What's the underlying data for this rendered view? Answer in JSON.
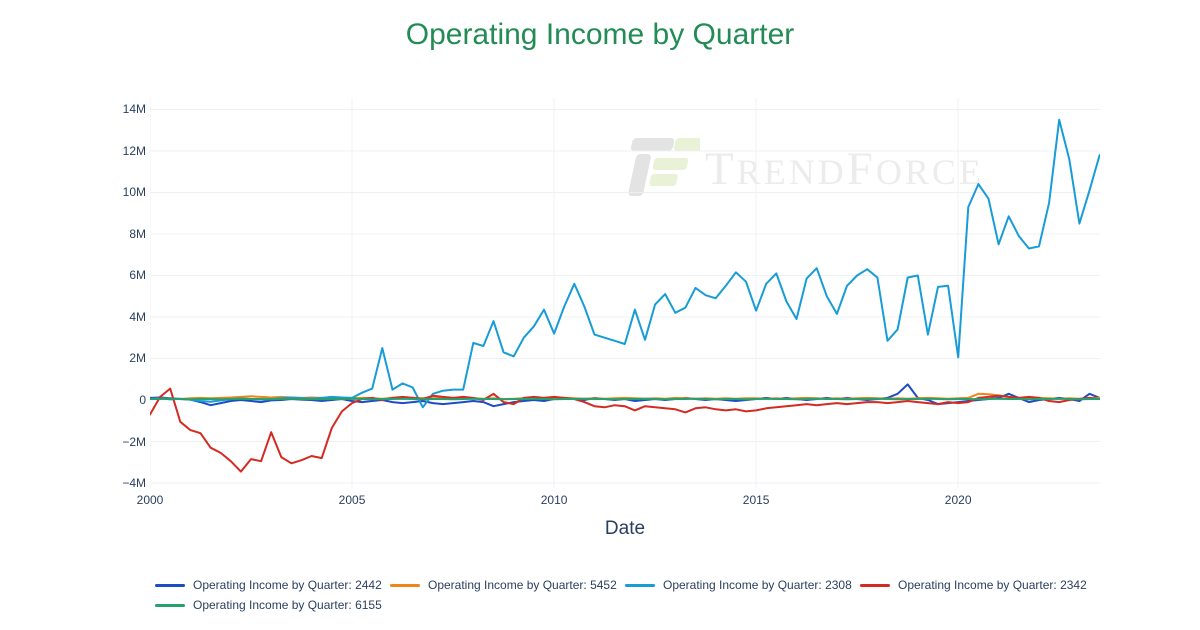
{
  "chart_data": {
    "type": "line",
    "title": "Operating Income by Quarter",
    "xlabel": "Date",
    "ylabel": "",
    "x_start": 2000,
    "x_step": 0.25,
    "xlim": [
      2000,
      2023.51
    ],
    "ylim": [
      -4.24,
      14.55
    ],
    "grid": true,
    "legend_position": "bottom",
    "x_ticks": [
      {
        "v": 2000,
        "label": "2000"
      },
      {
        "v": 2005,
        "label": "2005"
      },
      {
        "v": 2010,
        "label": "2010"
      },
      {
        "v": 2015,
        "label": "2015"
      },
      {
        "v": 2020,
        "label": "2020"
      }
    ],
    "y_ticks": [
      {
        "v": 14,
        "label": "14M"
      },
      {
        "v": 12,
        "label": "12M"
      },
      {
        "v": 10,
        "label": "10M"
      },
      {
        "v": 8,
        "label": "8M"
      },
      {
        "v": 6,
        "label": "6M"
      },
      {
        "v": 4,
        "label": "4M"
      },
      {
        "v": 2,
        "label": "2M"
      },
      {
        "v": 0,
        "label": "0"
      },
      {
        "v": -2,
        "label": "−2M"
      },
      {
        "v": -4,
        "label": "−4M"
      }
    ],
    "series": [
      {
        "name": "Operating Income by Quarter: 2442",
        "color": "#1e4cc5",
        "values": [
          0.1,
          0.12,
          0.08,
          0.05,
          0.02,
          -0.1,
          -0.25,
          -0.15,
          -0.05,
          0.0,
          -0.05,
          -0.1,
          -0.02,
          0.0,
          0.05,
          0.02,
          0.0,
          -0.05,
          0.0,
          0.05,
          -0.05,
          -0.1,
          -0.05,
          0.0,
          -0.1,
          -0.15,
          -0.1,
          -0.05,
          -0.15,
          -0.2,
          -0.15,
          -0.1,
          -0.05,
          -0.1,
          -0.3,
          -0.2,
          -0.1,
          -0.05,
          0.0,
          -0.05,
          0.05,
          0.1,
          0.05,
          0.0,
          0.1,
          0.05,
          0.0,
          0.05,
          -0.05,
          0.0,
          0.05,
          0.0,
          0.05,
          0.1,
          0.05,
          0.0,
          0.05,
          0.0,
          -0.05,
          0.0,
          0.05,
          0.1,
          0.05,
          0.1,
          0.05,
          0.0,
          0.05,
          0.1,
          0.05,
          0.1,
          0.05,
          0.0,
          0.05,
          0.1,
          0.3,
          0.75,
          0.1,
          0.0,
          -0.2,
          -0.15,
          -0.1,
          -0.05,
          0.0,
          0.05,
          0.1,
          0.3,
          0.1,
          -0.1,
          0.0,
          0.05,
          0.1,
          0.05,
          -0.05,
          0.3,
          0.1
        ]
      },
      {
        "name": "Operating Income by Quarter: 5452",
        "color": "#f08619",
        "values": [
          0.05,
          0.08,
          0.06,
          0.05,
          0.08,
          0.1,
          0.08,
          0.1,
          0.12,
          0.15,
          0.18,
          0.15,
          0.12,
          0.15,
          0.12,
          0.1,
          0.12,
          0.1,
          0.08,
          0.1,
          0.08,
          0.1,
          0.08,
          0.06,
          0.1,
          0.12,
          0.1,
          0.08,
          0.08,
          0.1,
          0.08,
          0.1,
          0.08,
          0.06,
          0.08,
          0.05,
          0.06,
          0.08,
          0.1,
          0.08,
          0.08,
          0.1,
          0.08,
          0.06,
          0.08,
          0.06,
          0.08,
          0.1,
          0.08,
          0.06,
          0.08,
          0.06,
          0.1,
          0.08,
          0.06,
          0.08,
          0.06,
          0.08,
          0.06,
          0.08,
          0.08,
          0.06,
          0.08,
          0.06,
          0.08,
          0.1,
          0.08,
          0.06,
          0.08,
          0.06,
          0.08,
          0.1,
          0.08,
          0.06,
          0.08,
          0.06,
          0.08,
          0.1,
          0.08,
          0.06,
          0.08,
          0.1,
          0.3,
          0.28,
          0.22,
          0.15,
          0.1,
          0.08,
          0.1,
          0.08,
          0.06,
          0.08,
          0.06,
          0.08,
          0.1
        ]
      },
      {
        "name": "Operating Income by Quarter: 2308",
        "color": "#189cd8",
        "values": [
          0.05,
          0.08,
          0.03,
          0.06,
          0.02,
          -0.05,
          -0.08,
          -0.02,
          0.04,
          0.07,
          0.05,
          0.02,
          0.05,
          0.08,
          0.12,
          0.09,
          0.07,
          0.1,
          0.15,
          0.12,
          0.1,
          0.35,
          0.55,
          2.5,
          0.5,
          0.8,
          0.6,
          -0.35,
          0.3,
          0.45,
          0.5,
          0.5,
          2.75,
          2.6,
          3.8,
          2.3,
          2.1,
          3.0,
          3.55,
          4.35,
          3.2,
          4.5,
          5.6,
          4.5,
          3.15,
          3.0,
          2.85,
          2.7,
          4.35,
          2.9,
          4.6,
          5.1,
          4.2,
          4.45,
          5.4,
          5.05,
          4.9,
          5.5,
          6.15,
          5.7,
          4.3,
          5.6,
          6.1,
          4.75,
          3.9,
          5.85,
          6.35,
          5.0,
          4.15,
          5.5,
          6.0,
          6.3,
          5.9,
          2.85,
          3.4,
          5.9,
          6.0,
          3.15,
          5.45,
          5.5,
          2.05,
          9.3,
          10.4,
          9.7,
          7.5,
          8.85,
          7.9,
          7.3,
          7.4,
          9.5,
          13.5,
          11.6,
          8.5,
          10.1,
          11.8
        ]
      },
      {
        "name": "Operating Income by Quarter: 2342",
        "color": "#d42a22",
        "values": [
          -0.7,
          0.15,
          0.55,
          -1.05,
          -1.45,
          -1.6,
          -2.3,
          -2.55,
          -2.95,
          -3.45,
          -2.85,
          -2.95,
          -1.55,
          -2.75,
          -3.05,
          -2.9,
          -2.7,
          -2.8,
          -1.35,
          -0.55,
          -0.15,
          0.05,
          0.1,
          0.0,
          0.1,
          0.15,
          0.1,
          0.05,
          0.2,
          0.15,
          0.1,
          0.15,
          0.1,
          0.0,
          0.3,
          -0.1,
          -0.2,
          0.1,
          0.15,
          0.1,
          0.15,
          0.1,
          0.05,
          -0.1,
          -0.3,
          -0.35,
          -0.25,
          -0.3,
          -0.5,
          -0.3,
          -0.35,
          -0.4,
          -0.45,
          -0.6,
          -0.4,
          -0.35,
          -0.45,
          -0.5,
          -0.45,
          -0.55,
          -0.5,
          -0.4,
          -0.35,
          -0.3,
          -0.25,
          -0.2,
          -0.25,
          -0.2,
          -0.15,
          -0.2,
          -0.15,
          -0.1,
          -0.1,
          -0.15,
          -0.1,
          -0.05,
          -0.1,
          -0.15,
          -0.2,
          -0.1,
          -0.15,
          -0.1,
          0.1,
          0.15,
          0.2,
          0.15,
          0.1,
          0.15,
          0.1,
          -0.05,
          -0.1,
          0.0,
          0.05,
          0.1,
          0.05
        ]
      },
      {
        "name": "Operating Income by Quarter: 6155",
        "color": "#28a06d",
        "values": [
          0.05,
          0.05,
          0.06,
          0.05,
          0.04,
          0.05,
          0.05,
          0.04,
          0.05,
          0.06,
          0.05,
          0.05,
          0.04,
          0.05,
          0.06,
          0.05,
          0.05,
          0.04,
          0.05,
          0.05,
          0.06,
          0.05,
          0.04,
          0.05,
          0.05,
          0.06,
          0.05,
          0.04,
          0.05,
          0.05,
          0.04,
          0.05,
          0.06,
          0.05,
          0.05,
          0.04,
          0.05,
          0.05,
          0.06,
          0.05,
          0.04,
          0.05,
          0.05,
          0.06,
          0.05,
          0.05,
          0.04,
          0.05,
          0.05,
          0.06,
          0.05,
          0.04,
          0.05,
          0.05,
          0.06,
          0.05,
          0.04,
          0.05,
          0.05,
          0.04,
          0.05,
          0.06,
          0.05,
          0.05,
          0.04,
          0.05,
          0.06,
          0.05,
          0.05,
          0.04,
          0.05,
          0.05,
          0.06,
          0.05,
          0.04,
          0.05,
          0.05,
          0.06,
          0.05,
          0.04,
          0.05,
          0.05,
          0.04,
          0.05,
          0.06,
          0.05,
          0.05,
          0.04,
          0.05,
          0.05,
          0.06,
          0.05,
          0.04,
          0.05,
          0.05
        ]
      }
    ]
  },
  "watermark": {
    "t1": "T",
    "t2": "REND",
    "t3": "F",
    "t4": "ORCE",
    "text_color": "#ececec",
    "logo_gray": "#e3e3e3",
    "logo_green": "#e9f1d6"
  },
  "theme": {
    "title_color": "#228c54",
    "axis_text_color": "#2a3f5f",
    "grid_color": "#eef0f4",
    "background": "#ffffff"
  }
}
